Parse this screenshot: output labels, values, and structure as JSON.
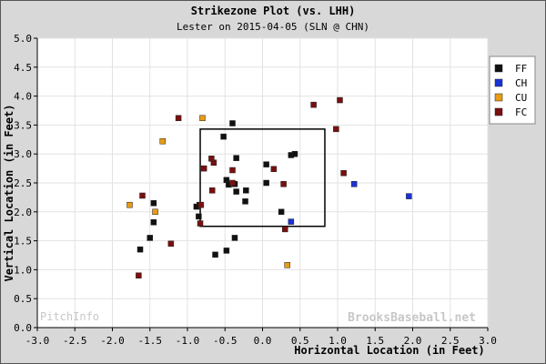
{
  "chart_data": {
    "type": "scatter",
    "title": "Strikezone Plot (vs. LHH)",
    "subtitle": "Lester on 2015-04-05 (SLN @ CHN)",
    "xlabel": "Horizontal Location (in Feet)",
    "ylabel": "Vertical Location (in Feet)",
    "xlim": [
      -3.0,
      3.0
    ],
    "ylim": [
      0.0,
      5.0
    ],
    "xticks": [
      "-3.0",
      "-2.5",
      "-2.0",
      "-1.5",
      "-1.0",
      "-0.5",
      "0.0",
      "0.5",
      "1.0",
      "1.5",
      "2.0",
      "2.5",
      "3.0"
    ],
    "yticks": [
      "0.0",
      "0.5",
      "1.0",
      "1.5",
      "2.0",
      "2.5",
      "3.0",
      "3.5",
      "4.0",
      "4.5",
      "5.0"
    ],
    "grid": true,
    "legend_position": "right",
    "strike_zone": {
      "x": [
        -0.83,
        0.83
      ],
      "y": [
        1.75,
        3.43
      ]
    },
    "watermark_left": "PitchInfo",
    "watermark_right": "BrooksBaseball.net",
    "colors": {
      "background": "#d8d8d8",
      "plot_bg": "#ffffff",
      "grid": "#e2e2e2",
      "axis": "#000000",
      "zone": "#000000",
      "watermark": "#c7c7c7"
    },
    "series": [
      {
        "name": "FF",
        "color": "#111111",
        "points": [
          [
            -0.4,
            3.53
          ],
          [
            -0.52,
            3.3
          ],
          [
            -0.35,
            2.93
          ],
          [
            0.05,
            2.82
          ],
          [
            0.38,
            2.98
          ],
          [
            0.43,
            3.0
          ],
          [
            -0.48,
            2.55
          ],
          [
            -0.45,
            2.47
          ],
          [
            -0.37,
            2.48
          ],
          [
            0.05,
            2.5
          ],
          [
            -0.22,
            2.37
          ],
          [
            -0.35,
            2.35
          ],
          [
            -0.23,
            2.18
          ],
          [
            -0.88,
            2.09
          ],
          [
            -0.84,
            2.12
          ],
          [
            -0.85,
            1.92
          ],
          [
            -1.45,
            2.15
          ],
          [
            -1.45,
            1.82
          ],
          [
            0.25,
            2.0
          ],
          [
            -1.5,
            1.55
          ],
          [
            -1.63,
            1.35
          ],
          [
            -0.37,
            1.55
          ],
          [
            -0.48,
            1.33
          ],
          [
            -0.63,
            1.26
          ]
        ]
      },
      {
        "name": "CH",
        "color": "#1a33d6",
        "points": [
          [
            1.22,
            2.48
          ],
          [
            1.95,
            2.27
          ],
          [
            0.38,
            1.83
          ]
        ]
      },
      {
        "name": "CU",
        "color": "#e89b14",
        "points": [
          [
            -0.8,
            3.62
          ],
          [
            -1.33,
            3.22
          ],
          [
            -1.77,
            2.12
          ],
          [
            -1.43,
            2.0
          ],
          [
            0.33,
            1.08
          ]
        ]
      },
      {
        "name": "FC",
        "color": "#7a0f0f",
        "points": [
          [
            -1.12,
            3.62
          ],
          [
            0.68,
            3.85
          ],
          [
            1.03,
            3.93
          ],
          [
            0.98,
            3.43
          ],
          [
            -0.65,
            2.85
          ],
          [
            -0.68,
            2.92
          ],
          [
            -0.78,
            2.75
          ],
          [
            -0.4,
            2.72
          ],
          [
            0.15,
            2.74
          ],
          [
            1.08,
            2.67
          ],
          [
            -0.4,
            2.5
          ],
          [
            0.28,
            2.48
          ],
          [
            -0.67,
            2.37
          ],
          [
            -1.6,
            2.28
          ],
          [
            -0.82,
            2.12
          ],
          [
            -0.83,
            1.8
          ],
          [
            0.3,
            1.7
          ],
          [
            -1.22,
            1.45
          ],
          [
            -1.65,
            0.9
          ]
        ]
      }
    ]
  }
}
